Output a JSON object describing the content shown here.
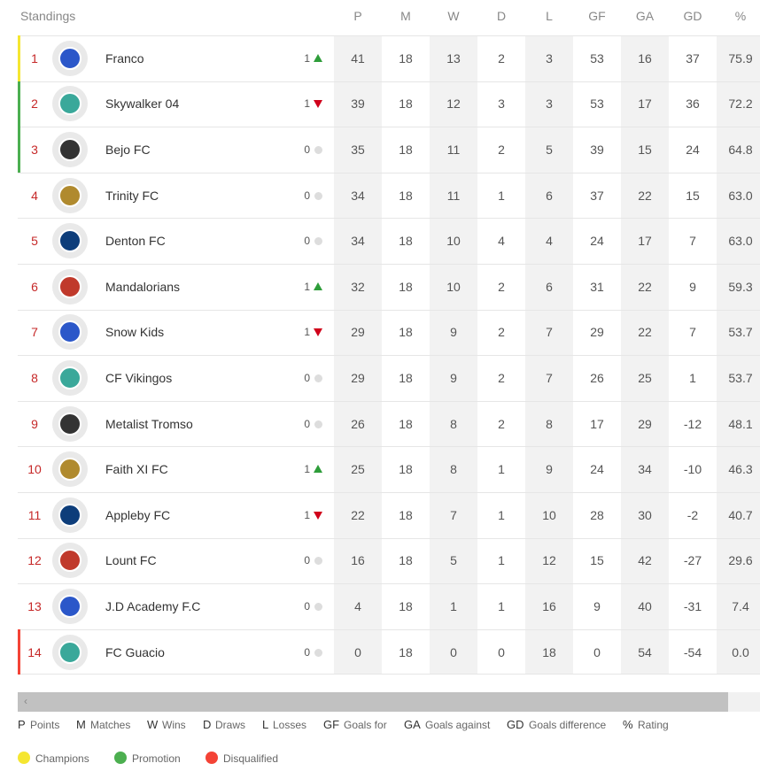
{
  "header": {
    "title": "Standings"
  },
  "table": {
    "columns": [
      "P",
      "M",
      "W",
      "D",
      "L",
      "GF",
      "GA",
      "GD",
      "%"
    ],
    "rows": [
      {
        "rank": 1,
        "team": "Franco",
        "move": 1,
        "trend": "up",
        "status": "Champions",
        "stats": [
          41,
          18,
          13,
          2,
          3,
          53,
          16,
          37,
          "75.9"
        ]
      },
      {
        "rank": 2,
        "team": "Skywalker 04",
        "move": 1,
        "trend": "down",
        "status": "Promotion",
        "stats": [
          39,
          18,
          12,
          3,
          3,
          53,
          17,
          36,
          "72.2"
        ]
      },
      {
        "rank": 3,
        "team": "Bejo FC",
        "move": 0,
        "trend": "none",
        "status": "Promotion",
        "stats": [
          35,
          18,
          11,
          2,
          5,
          39,
          15,
          24,
          "64.8"
        ]
      },
      {
        "rank": 4,
        "team": "Trinity FC",
        "move": 0,
        "trend": "none",
        "stats": [
          34,
          18,
          11,
          1,
          6,
          37,
          22,
          15,
          "63.0"
        ]
      },
      {
        "rank": 5,
        "team": "Denton FC",
        "move": 0,
        "trend": "none",
        "stats": [
          34,
          18,
          10,
          4,
          4,
          24,
          17,
          7,
          "63.0"
        ]
      },
      {
        "rank": 6,
        "team": "Mandalorians",
        "move": 1,
        "trend": "up",
        "stats": [
          32,
          18,
          10,
          2,
          6,
          31,
          22,
          9,
          "59.3"
        ]
      },
      {
        "rank": 7,
        "team": "Snow Kids",
        "move": 1,
        "trend": "down",
        "stats": [
          29,
          18,
          9,
          2,
          7,
          29,
          22,
          7,
          "53.7"
        ]
      },
      {
        "rank": 8,
        "team": "CF Vikingos",
        "move": 0,
        "trend": "none",
        "stats": [
          29,
          18,
          9,
          2,
          7,
          26,
          25,
          1,
          "53.7"
        ]
      },
      {
        "rank": 9,
        "team": "Metalist Tromso",
        "move": 0,
        "trend": "none",
        "stats": [
          26,
          18,
          8,
          2,
          8,
          17,
          29,
          -12,
          "48.1"
        ]
      },
      {
        "rank": 10,
        "team": "Faith XI FC",
        "move": 1,
        "trend": "up",
        "stats": [
          25,
          18,
          8,
          1,
          9,
          24,
          34,
          -10,
          "46.3"
        ]
      },
      {
        "rank": 11,
        "team": "Appleby FC",
        "move": 1,
        "trend": "down",
        "stats": [
          22,
          18,
          7,
          1,
          10,
          28,
          30,
          -2,
          "40.7"
        ]
      },
      {
        "rank": 12,
        "team": "Lount FC",
        "move": 0,
        "trend": "none",
        "stats": [
          16,
          18,
          5,
          1,
          12,
          15,
          42,
          -27,
          "29.6"
        ]
      },
      {
        "rank": 13,
        "team": "J.D Academy F.C",
        "move": 0,
        "trend": "none",
        "stats": [
          4,
          18,
          1,
          1,
          16,
          9,
          40,
          -31,
          "7.4"
        ]
      },
      {
        "rank": 14,
        "team": "FC Guacio",
        "move": 0,
        "trend": "none",
        "status": "Disqualified",
        "stats": [
          0,
          18,
          0,
          0,
          18,
          0,
          54,
          -54,
          "0.0"
        ]
      }
    ]
  },
  "abbreviations": [
    {
      "abbr": "P",
      "text": "Points"
    },
    {
      "abbr": "M",
      "text": "Matches"
    },
    {
      "abbr": "W",
      "text": "Wins"
    },
    {
      "abbr": "D",
      "text": "Draws"
    },
    {
      "abbr": "L",
      "text": "Losses"
    },
    {
      "abbr": "GF",
      "text": "Goals for"
    },
    {
      "abbr": "GA",
      "text": "Goals against"
    },
    {
      "abbr": "GD",
      "text": "Goals difference"
    },
    {
      "abbr": "%",
      "text": "Rating"
    }
  ],
  "status_legend": [
    {
      "label": "Champions",
      "color": "#f5e631"
    },
    {
      "label": "Promotion",
      "color": "#4caf50"
    },
    {
      "label": "Disqualified",
      "color": "#f44336"
    }
  ]
}
